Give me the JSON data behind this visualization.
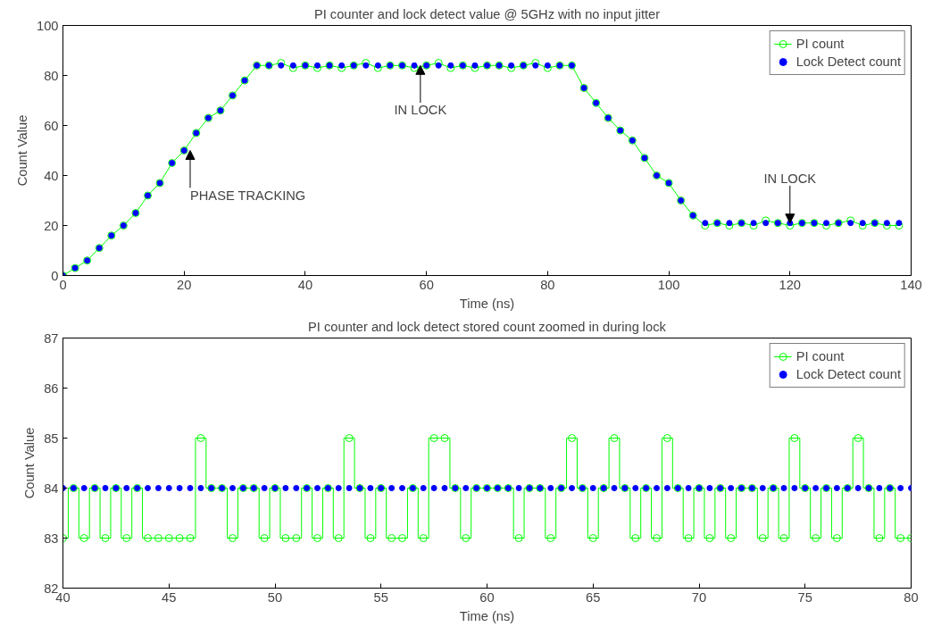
{
  "chart_data": [
    {
      "type": "line",
      "title": "PI counter and lock detect value @ 5GHz with no input jitter",
      "xlabel": "Time (ns)",
      "ylabel": "Count Value",
      "xlim": [
        0,
        140
      ],
      "xticks": [
        0,
        20,
        40,
        60,
        80,
        100,
        120,
        140
      ],
      "ylim": [
        0,
        100
      ],
      "yticks": [
        0,
        20,
        40,
        60,
        80,
        100
      ],
      "grid": false,
      "legend": "top right",
      "x": [
        0,
        2,
        4,
        6,
        8,
        10,
        12,
        14,
        16,
        18,
        20,
        22,
        24,
        26,
        28,
        30,
        32,
        34,
        36,
        38,
        40,
        42,
        44,
        46,
        48,
        50,
        52,
        54,
        56,
        58,
        60,
        62,
        64,
        66,
        68,
        70,
        72,
        74,
        76,
        78,
        80,
        82,
        84,
        86,
        88,
        90,
        92,
        94,
        96,
        98,
        100,
        102,
        104,
        106,
        108,
        110,
        112,
        114,
        116,
        118,
        120,
        122,
        124,
        126,
        128,
        130,
        132,
        134,
        136,
        138
      ],
      "series": [
        {
          "name": "PI count",
          "marker": "circle",
          "color": "#00ff00",
          "values": [
            0,
            3,
            6,
            11,
            16,
            20,
            25,
            32,
            37,
            45,
            50,
            57,
            63,
            66,
            72,
            78,
            84,
            84,
            85,
            83,
            84,
            83,
            84,
            83,
            84,
            85,
            83,
            84,
            84,
            83,
            84,
            85,
            83,
            84,
            83,
            84,
            84,
            83,
            84,
            85,
            83,
            84,
            84,
            75,
            69,
            63,
            58,
            54,
            47,
            40,
            37,
            30,
            24,
            20,
            21,
            20,
            21,
            20,
            22,
            21,
            20,
            21,
            21,
            20,
            21,
            22,
            20,
            21,
            20,
            20
          ]
        },
        {
          "name": "Lock Detect count",
          "type": "scatter",
          "marker": "circle",
          "color": "#0000ff",
          "values": [
            0,
            3,
            6,
            11,
            16,
            20,
            25,
            32,
            37,
            45,
            50,
            57,
            63,
            66,
            72,
            78,
            84,
            84,
            84,
            84,
            84,
            84,
            84,
            84,
            84,
            84,
            84,
            84,
            84,
            84,
            84,
            84,
            84,
            84,
            84,
            84,
            84,
            84,
            84,
            84,
            84,
            84,
            84,
            75,
            69,
            63,
            58,
            54,
            47,
            40,
            37,
            30,
            24,
            21,
            21,
            21,
            21,
            21,
            21,
            21,
            21,
            21,
            21,
            21,
            21,
            21,
            21,
            21,
            21,
            21
          ]
        }
      ],
      "annotations": [
        {
          "text": "IN LOCK",
          "x": 59,
          "y": 84
        },
        {
          "text": "PHASE TRACKING",
          "x": 21,
          "y": 50
        },
        {
          "text": "IN LOCK",
          "x": 120,
          "y": 21
        }
      ]
    },
    {
      "type": "step",
      "title": "PI counter and lock detect stored count zoomed in during lock",
      "xlabel": "Time (ns)",
      "ylabel": "Count Value",
      "xlim": [
        40,
        80
      ],
      "xticks": [
        40,
        45,
        50,
        55,
        60,
        65,
        70,
        75,
        80
      ],
      "ylim": [
        82,
        87
      ],
      "yticks": [
        82,
        83,
        84,
        85,
        86,
        87
      ],
      "grid": false,
      "legend": "top right",
      "x": [
        40,
        40.5,
        41,
        41.5,
        42,
        42.5,
        43,
        43.5,
        44,
        44.5,
        45,
        45.5,
        46,
        46.5,
        47,
        47.5,
        48,
        48.5,
        49,
        49.5,
        50,
        50.5,
        51,
        51.5,
        52,
        52.5,
        53,
        53.5,
        54,
        54.5,
        55,
        55.5,
        56,
        56.5,
        57,
        57.5,
        58,
        58.5,
        59,
        59.5,
        60,
        60.5,
        61,
        61.5,
        62,
        62.5,
        63,
        63.5,
        64,
        64.5,
        65,
        65.5,
        66,
        66.5,
        67,
        67.5,
        68,
        68.5,
        69,
        69.5,
        70,
        70.5,
        71,
        71.5,
        72,
        72.5,
        73,
        73.5,
        74,
        74.5,
        75,
        75.5,
        76,
        76.5,
        77,
        77.5,
        78,
        78.5,
        79,
        79.5,
        80
      ],
      "series": [
        {
          "name": "PI count",
          "marker": "circle",
          "color": "#00ff00",
          "values": [
            83,
            84,
            83,
            84,
            83,
            84,
            83,
            84,
            83,
            83,
            83,
            83,
            83,
            85,
            84,
            84,
            83,
            84,
            84,
            83,
            84,
            83,
            83,
            84,
            83,
            84,
            83,
            85,
            84,
            83,
            84,
            83,
            83,
            84,
            83,
            85,
            85,
            84,
            83,
            84,
            84,
            84,
            84,
            83,
            84,
            84,
            83,
            84,
            85,
            84,
            83,
            84,
            85,
            84,
            83,
            84,
            83,
            85,
            84,
            83,
            84,
            83,
            84,
            83,
            84,
            84,
            83,
            84,
            83,
            85,
            84,
            83,
            84,
            83,
            84,
            85,
            84,
            83,
            84,
            83,
            83
          ]
        },
        {
          "name": "Lock Detect count",
          "type": "scatter",
          "marker": "circle",
          "color": "#0000ff",
          "values": [
            84,
            84,
            84,
            84,
            84,
            84,
            84,
            84,
            84,
            84,
            84,
            84,
            84,
            84,
            84,
            84,
            84,
            84,
            84,
            84,
            84,
            84,
            84,
            84,
            84,
            84,
            84,
            84,
            84,
            84,
            84,
            84,
            84,
            84,
            84,
            84,
            84,
            84,
            84,
            84,
            84,
            84,
            84,
            84,
            84,
            84,
            84,
            84,
            84,
            84,
            84,
            84,
            84,
            84,
            84,
            84,
            84,
            84,
            84,
            84,
            84,
            84,
            84,
            84,
            84,
            84,
            84,
            84,
            84,
            84,
            84,
            84,
            84,
            84,
            84,
            84,
            84,
            84,
            84,
            84,
            84
          ]
        }
      ]
    }
  ]
}
